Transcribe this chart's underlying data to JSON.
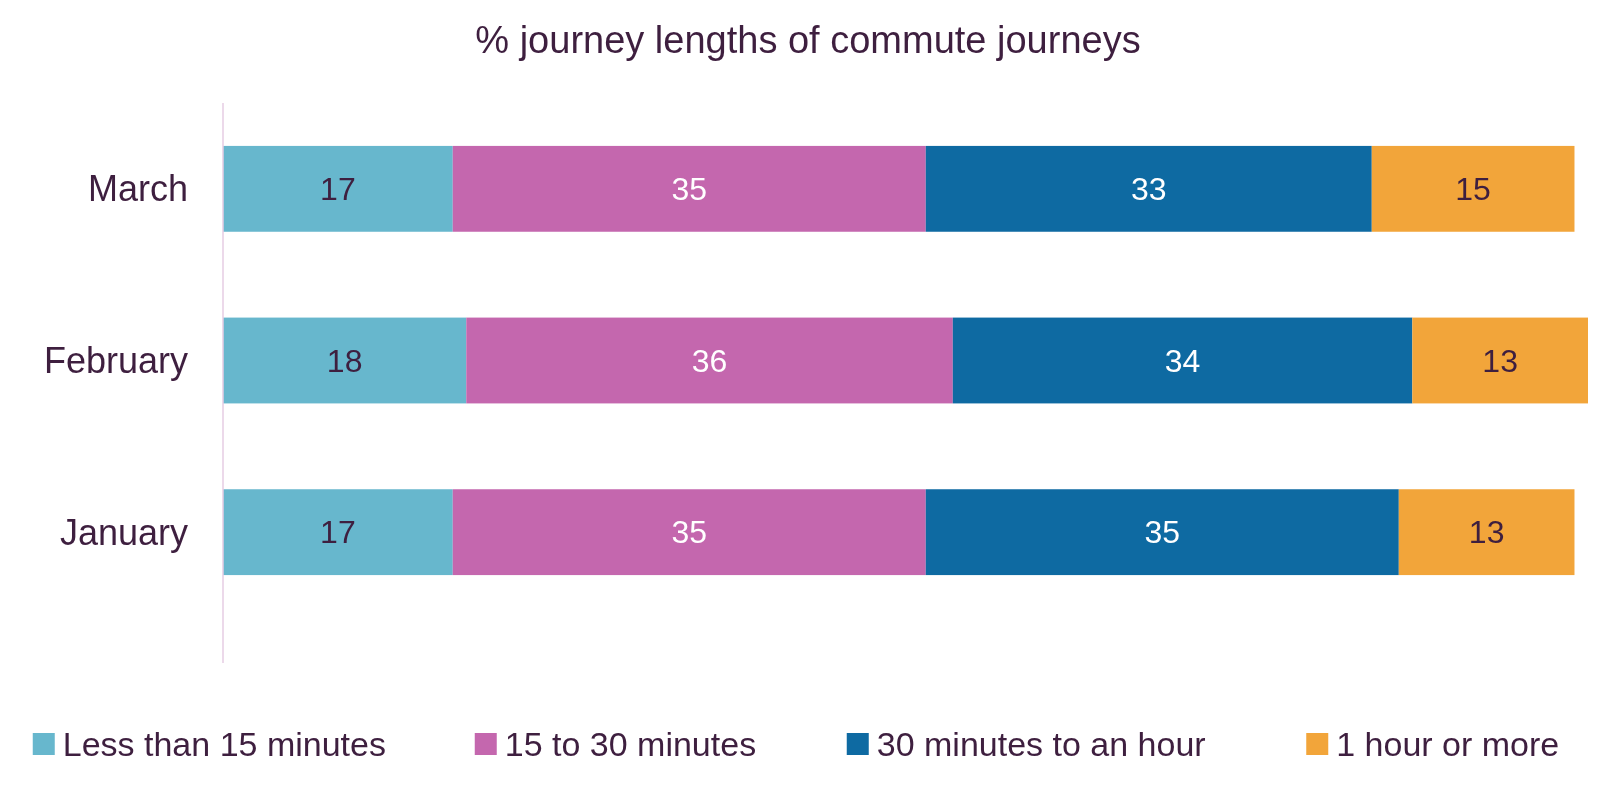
{
  "chart_data": {
    "type": "bar",
    "orientation": "horizontal",
    "stacked": true,
    "title": "% journey lengths of commute journeys",
    "categories": [
      "March",
      "February",
      "January"
    ],
    "series": [
      {
        "name": "Less than 15 minutes",
        "color": "#67b7cd",
        "values": [
          17,
          18,
          17
        ]
      },
      {
        "name": "15 to 30 minutes",
        "color": "#c467ae",
        "values": [
          35,
          36,
          35
        ]
      },
      {
        "name": "30 minutes to an hour",
        "color": "#0e6aa2",
        "values": [
          33,
          34,
          35
        ]
      },
      {
        "name": "1 hour or more",
        "color": "#f2a53a",
        "values": [
          15,
          13,
          13
        ]
      }
    ],
    "data_labels": true,
    "legend": "bottom"
  }
}
